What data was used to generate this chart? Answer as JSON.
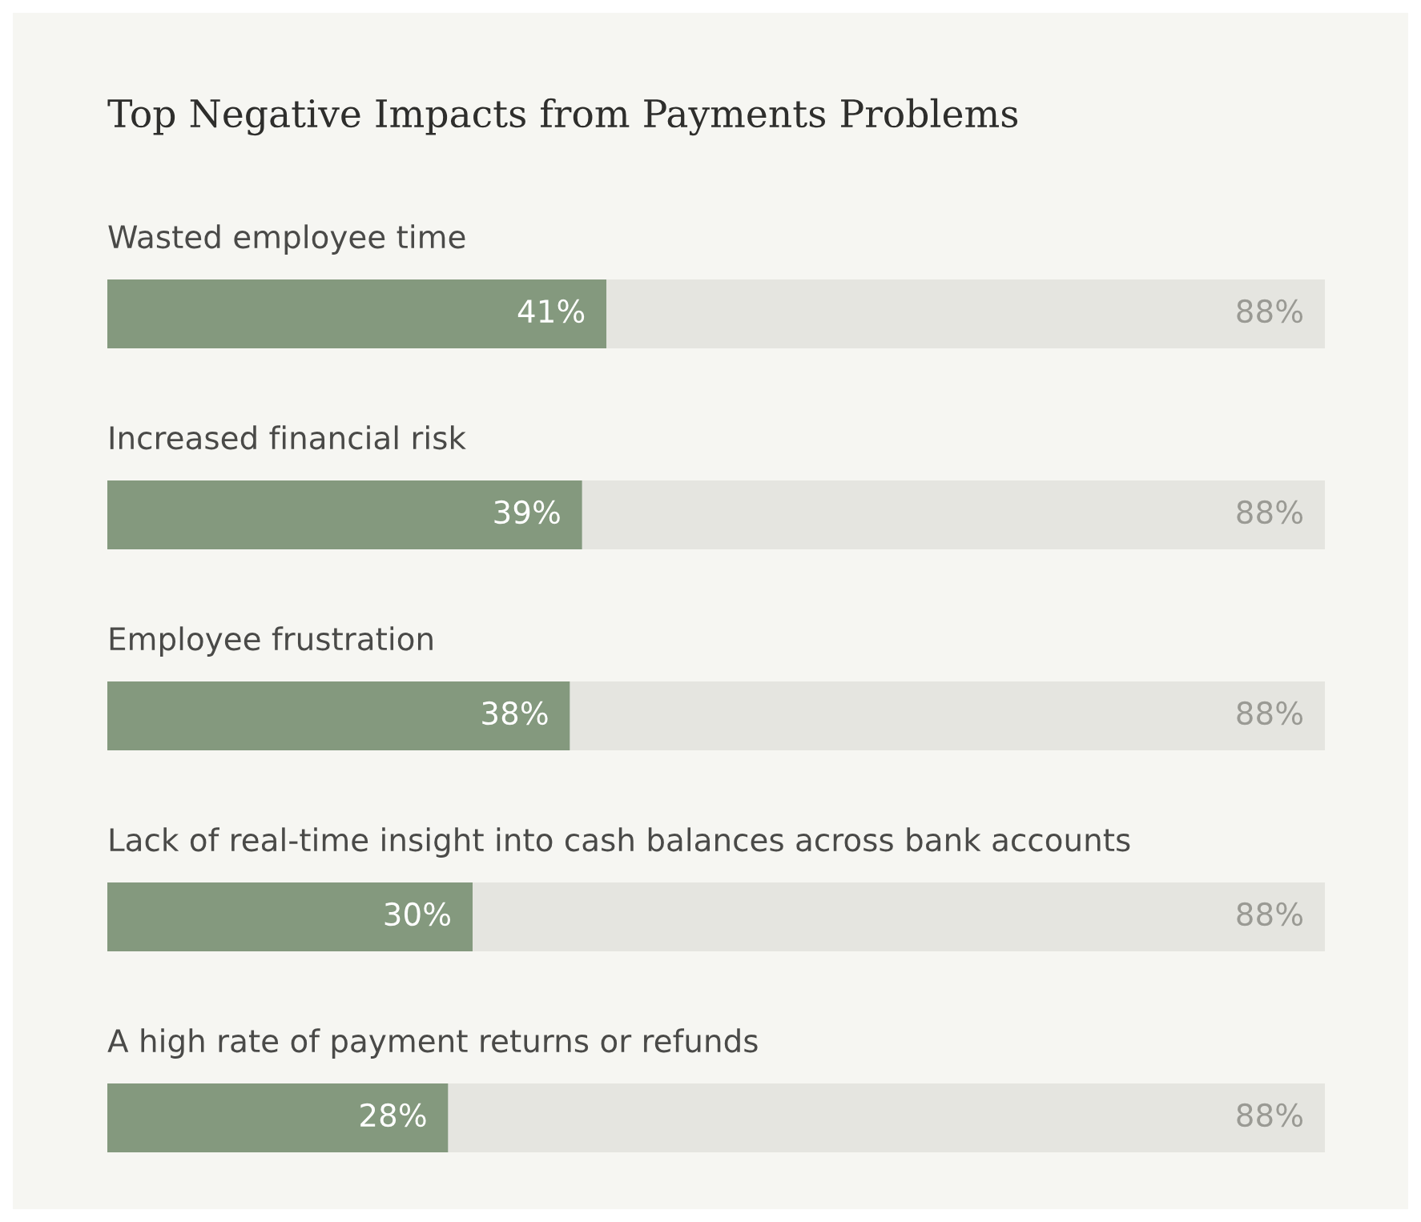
{
  "chart_data": {
    "type": "bar",
    "orientation": "horizontal",
    "stacked": true,
    "title": "Top Negative Impacts from Payments Problems",
    "categories": [
      "Wasted employee time",
      "Increased financial risk",
      "Employee frustration",
      "Lack of real-time insight into cash balances across bank accounts",
      "A high rate of payment returns or refunds"
    ],
    "series": [
      {
        "color": "#84997e",
        "values": [
          41,
          39,
          38,
          30,
          28
        ],
        "value_labels": [
          "41%",
          "39%",
          "38%",
          "30%",
          "28%"
        ]
      },
      {
        "color": "#e5e5e0",
        "values": [
          59,
          61,
          62,
          70,
          72
        ]
      }
    ],
    "annotations": [
      "88%",
      "88%",
      "88%",
      "88%",
      "88%"
    ],
    "xlim": [
      0,
      100
    ],
    "legend": false,
    "tick_labels": false
  }
}
